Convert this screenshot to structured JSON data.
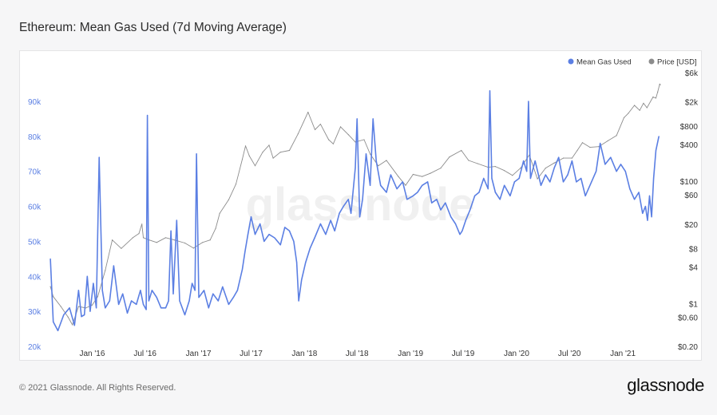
{
  "header": {
    "title": "Ethereum: Mean Gas Used (7d Moving Average)"
  },
  "footer": {
    "copyright": "© 2021 Glassnode. All Rights Reserved.",
    "brand": "glassnode"
  },
  "watermark": "glassnode",
  "colors": {
    "gas": "#5b7fe3",
    "price": "#8c8c8c",
    "left_axis": "#5b7fe3",
    "right_axis": "#333333"
  },
  "chart_data": {
    "type": "line",
    "title": "Ethereum: Mean Gas Used (7d Moving Average)",
    "x_range": [
      "2015-08-07",
      "2021-05-10"
    ],
    "x_ticks": [
      {
        "date": "2016-01-01",
        "label": "Jan '16"
      },
      {
        "date": "2016-07-01",
        "label": "Jul '16"
      },
      {
        "date": "2017-01-01",
        "label": "Jan '17"
      },
      {
        "date": "2017-07-01",
        "label": "Jul '17"
      },
      {
        "date": "2018-01-01",
        "label": "Jan '18"
      },
      {
        "date": "2018-07-01",
        "label": "Jul '18"
      },
      {
        "date": "2019-01-01",
        "label": "Jan '19"
      },
      {
        "date": "2019-07-01",
        "label": "Jul '19"
      },
      {
        "date": "2020-01-01",
        "label": "Jan '20"
      },
      {
        "date": "2020-07-01",
        "label": "Jul '20"
      },
      {
        "date": "2021-01-01",
        "label": "Jan '21"
      }
    ],
    "y_left": {
      "scale": "linear",
      "range": [
        20000,
        95000
      ],
      "ticks": [
        {
          "value": 20000,
          "label": "20k"
        },
        {
          "value": 30000,
          "label": "30k"
        },
        {
          "value": 40000,
          "label": "40k"
        },
        {
          "value": 50000,
          "label": "50k"
        },
        {
          "value": 60000,
          "label": "60k"
        },
        {
          "value": 70000,
          "label": "70k"
        },
        {
          "value": 80000,
          "label": "80k"
        },
        {
          "value": 90000,
          "label": "90k"
        }
      ]
    },
    "y_right": {
      "scale": "log",
      "range": [
        0.2,
        6000
      ],
      "ticks": [
        {
          "value": 0.2,
          "label": "$0.20"
        },
        {
          "value": 0.6,
          "label": "$0.60"
        },
        {
          "value": 1,
          "label": "$1"
        },
        {
          "value": 4,
          "label": "$4"
        },
        {
          "value": 8,
          "label": "$8"
        },
        {
          "value": 20,
          "label": "$20"
        },
        {
          "value": 60,
          "label": "$60"
        },
        {
          "value": 100,
          "label": "$100"
        },
        {
          "value": 400,
          "label": "$400"
        },
        {
          "value": 800,
          "label": "$800"
        },
        {
          "value": 2000,
          "label": "$2k"
        },
        {
          "value": 6000,
          "label": "$6k"
        }
      ]
    },
    "legend": {
      "placement": "top-right"
    },
    "series": [
      {
        "name": "Mean Gas Used",
        "axis": "left",
        "points": [
          [
            "2015-08-10",
            45000
          ],
          [
            "2015-08-20",
            27000
          ],
          [
            "2015-09-05",
            24500
          ],
          [
            "2015-09-25",
            29000
          ],
          [
            "2015-10-15",
            31000
          ],
          [
            "2015-11-01",
            26000
          ],
          [
            "2015-11-15",
            36000
          ],
          [
            "2015-11-25",
            28500
          ],
          [
            "2015-12-05",
            29000
          ],
          [
            "2015-12-15",
            40000
          ],
          [
            "2015-12-25",
            30000
          ],
          [
            "2016-01-05",
            38000
          ],
          [
            "2016-01-15",
            31000
          ],
          [
            "2016-01-25",
            74000
          ],
          [
            "2016-02-05",
            36000
          ],
          [
            "2016-02-15",
            31000
          ],
          [
            "2016-03-01",
            33000
          ],
          [
            "2016-03-15",
            43000
          ],
          [
            "2016-04-01",
            32000
          ],
          [
            "2016-04-15",
            35000
          ],
          [
            "2016-05-01",
            29500
          ],
          [
            "2016-05-15",
            33000
          ],
          [
            "2016-06-01",
            32000
          ],
          [
            "2016-06-15",
            36000
          ],
          [
            "2016-06-25",
            32000
          ],
          [
            "2016-07-05",
            30500
          ],
          [
            "2016-07-09",
            86000
          ],
          [
            "2016-07-14",
            33000
          ],
          [
            "2016-07-25",
            36000
          ],
          [
            "2016-08-10",
            34000
          ],
          [
            "2016-08-25",
            31000
          ],
          [
            "2016-09-10",
            31000
          ],
          [
            "2016-09-20",
            33000
          ],
          [
            "2016-09-28",
            53000
          ],
          [
            "2016-10-06",
            35000
          ],
          [
            "2016-10-18",
            56000
          ],
          [
            "2016-10-28",
            33000
          ],
          [
            "2016-11-15",
            29000
          ],
          [
            "2016-11-30",
            33000
          ],
          [
            "2016-12-10",
            38000
          ],
          [
            "2016-12-20",
            36000
          ],
          [
            "2016-12-25",
            75000
          ],
          [
            "2017-01-02",
            34000
          ],
          [
            "2017-01-20",
            36000
          ],
          [
            "2017-02-05",
            31000
          ],
          [
            "2017-02-20",
            35000
          ],
          [
            "2017-03-10",
            33000
          ],
          [
            "2017-03-25",
            37000
          ],
          [
            "2017-04-15",
            32000
          ],
          [
            "2017-05-01",
            34000
          ],
          [
            "2017-05-15",
            36000
          ],
          [
            "2017-06-01",
            42000
          ],
          [
            "2017-06-10",
            47000
          ],
          [
            "2017-06-20",
            52000
          ],
          [
            "2017-07-01",
            57000
          ],
          [
            "2017-07-15",
            52000
          ],
          [
            "2017-08-01",
            55000
          ],
          [
            "2017-08-15",
            50000
          ],
          [
            "2017-09-01",
            52000
          ],
          [
            "2017-09-20",
            51000
          ],
          [
            "2017-10-10",
            49000
          ],
          [
            "2017-10-25",
            54000
          ],
          [
            "2017-11-10",
            53000
          ],
          [
            "2017-11-25",
            50000
          ],
          [
            "2017-12-05",
            44000
          ],
          [
            "2017-12-12",
            33000
          ],
          [
            "2017-12-22",
            39000
          ],
          [
            "2018-01-05",
            44000
          ],
          [
            "2018-01-20",
            48000
          ],
          [
            "2018-02-05",
            51000
          ],
          [
            "2018-02-25",
            55000
          ],
          [
            "2018-03-15",
            52000
          ],
          [
            "2018-04-01",
            56000
          ],
          [
            "2018-04-15",
            53000
          ],
          [
            "2018-05-01",
            58000
          ],
          [
            "2018-05-15",
            60000
          ],
          [
            "2018-06-01",
            62000
          ],
          [
            "2018-06-10",
            58000
          ],
          [
            "2018-06-25",
            71000
          ],
          [
            "2018-07-01",
            85000
          ],
          [
            "2018-07-10",
            57000
          ],
          [
            "2018-07-20",
            62000
          ],
          [
            "2018-08-01",
            75000
          ],
          [
            "2018-08-15",
            66000
          ],
          [
            "2018-08-25",
            85000
          ],
          [
            "2018-09-05",
            73000
          ],
          [
            "2018-09-20",
            66000
          ],
          [
            "2018-10-10",
            64000
          ],
          [
            "2018-10-25",
            69000
          ],
          [
            "2018-11-15",
            65000
          ],
          [
            "2018-12-05",
            67000
          ],
          [
            "2018-12-20",
            62000
          ],
          [
            "2019-01-10",
            63000
          ],
          [
            "2019-01-25",
            64000
          ],
          [
            "2019-02-10",
            66000
          ],
          [
            "2019-03-01",
            67000
          ],
          [
            "2019-03-15",
            61000
          ],
          [
            "2019-04-01",
            62000
          ],
          [
            "2019-04-15",
            59000
          ],
          [
            "2019-05-01",
            61000
          ],
          [
            "2019-05-20",
            57000
          ],
          [
            "2019-06-05",
            55000
          ],
          [
            "2019-06-20",
            52000
          ],
          [
            "2019-06-28",
            53000
          ],
          [
            "2019-07-10",
            56000
          ],
          [
            "2019-07-25",
            59000
          ],
          [
            "2019-08-10",
            63000
          ],
          [
            "2019-08-25",
            64000
          ],
          [
            "2019-09-10",
            68000
          ],
          [
            "2019-09-25",
            65000
          ],
          [
            "2019-10-01",
            93000
          ],
          [
            "2019-10-08",
            68000
          ],
          [
            "2019-10-20",
            64000
          ],
          [
            "2019-11-05",
            62000
          ],
          [
            "2019-11-20",
            66000
          ],
          [
            "2019-12-10",
            63000
          ],
          [
            "2019-12-25",
            67000
          ],
          [
            "2020-01-10",
            68000
          ],
          [
            "2020-01-25",
            73000
          ],
          [
            "2020-02-05",
            70000
          ],
          [
            "2020-02-11",
            90000
          ],
          [
            "2020-02-18",
            68000
          ],
          [
            "2020-03-05",
            73000
          ],
          [
            "2020-03-25",
            66000
          ],
          [
            "2020-04-10",
            69000
          ],
          [
            "2020-04-25",
            67000
          ],
          [
            "2020-05-10",
            71000
          ],
          [
            "2020-05-25",
            74000
          ],
          [
            "2020-06-10",
            67000
          ],
          [
            "2020-06-25",
            69000
          ],
          [
            "2020-07-10",
            73000
          ],
          [
            "2020-07-25",
            67000
          ],
          [
            "2020-08-10",
            68000
          ],
          [
            "2020-08-25",
            63000
          ],
          [
            "2020-09-15",
            67000
          ],
          [
            "2020-10-01",
            70000
          ],
          [
            "2020-10-15",
            78000
          ],
          [
            "2020-11-01",
            72000
          ],
          [
            "2020-11-20",
            74000
          ],
          [
            "2020-12-10",
            70000
          ],
          [
            "2020-12-25",
            72000
          ],
          [
            "2021-01-10",
            70000
          ],
          [
            "2021-01-25",
            65000
          ],
          [
            "2021-02-10",
            62000
          ],
          [
            "2021-02-25",
            64000
          ],
          [
            "2021-03-10",
            58000
          ],
          [
            "2021-03-20",
            60000
          ],
          [
            "2021-03-27",
            56000
          ],
          [
            "2021-04-03",
            63000
          ],
          [
            "2021-04-10",
            57000
          ],
          [
            "2021-04-17",
            68000
          ],
          [
            "2021-04-25",
            76000
          ],
          [
            "2021-05-05",
            80000
          ]
        ]
      },
      {
        "name": "Price [USD]",
        "axis": "right",
        "points": [
          [
            "2015-08-10",
            1.9
          ],
          [
            "2015-08-20",
            1.3
          ],
          [
            "2015-09-15",
            0.9
          ],
          [
            "2015-10-10",
            0.6
          ],
          [
            "2015-10-25",
            0.45
          ],
          [
            "2015-11-15",
            0.9
          ],
          [
            "2015-12-10",
            0.85
          ],
          [
            "2016-01-01",
            0.95
          ],
          [
            "2016-01-20",
            1.3
          ],
          [
            "2016-02-15",
            3.5
          ],
          [
            "2016-03-10",
            11
          ],
          [
            "2016-04-10",
            8
          ],
          [
            "2016-05-20",
            12
          ],
          [
            "2016-06-10",
            14
          ],
          [
            "2016-06-20",
            20
          ],
          [
            "2016-06-25",
            12
          ],
          [
            "2016-07-15",
            11
          ],
          [
            "2016-08-10",
            10
          ],
          [
            "2016-09-10",
            12
          ],
          [
            "2016-10-10",
            11
          ],
          [
            "2016-11-15",
            9.8
          ],
          [
            "2016-12-15",
            8.1
          ],
          [
            "2017-01-15",
            10
          ],
          [
            "2017-02-10",
            11
          ],
          [
            "2017-03-01",
            17
          ],
          [
            "2017-03-15",
            30
          ],
          [
            "2017-04-15",
            50
          ],
          [
            "2017-05-10",
            90
          ],
          [
            "2017-06-01",
            230
          ],
          [
            "2017-06-12",
            380
          ],
          [
            "2017-06-25",
            260
          ],
          [
            "2017-07-15",
            180
          ],
          [
            "2017-08-10",
            300
          ],
          [
            "2017-09-01",
            390
          ],
          [
            "2017-09-15",
            240
          ],
          [
            "2017-10-10",
            300
          ],
          [
            "2017-11-10",
            320
          ],
          [
            "2017-12-10",
            600
          ],
          [
            "2018-01-13",
            1350
          ],
          [
            "2018-02-06",
            700
          ],
          [
            "2018-02-25",
            860
          ],
          [
            "2018-03-25",
            480
          ],
          [
            "2018-04-10",
            410
          ],
          [
            "2018-05-05",
            780
          ],
          [
            "2018-06-01",
            580
          ],
          [
            "2018-06-25",
            440
          ],
          [
            "2018-07-25",
            480
          ],
          [
            "2018-08-15",
            280
          ],
          [
            "2018-09-12",
            180
          ],
          [
            "2018-10-10",
            220
          ],
          [
            "2018-11-20",
            120
          ],
          [
            "2018-12-15",
            86
          ],
          [
            "2019-01-10",
            130
          ],
          [
            "2019-02-10",
            120
          ],
          [
            "2019-03-10",
            135
          ],
          [
            "2019-04-15",
            165
          ],
          [
            "2019-05-15",
            250
          ],
          [
            "2019-06-25",
            320
          ],
          [
            "2019-07-20",
            220
          ],
          [
            "2019-08-20",
            195
          ],
          [
            "2019-09-25",
            170
          ],
          [
            "2019-10-20",
            175
          ],
          [
            "2019-11-20",
            150
          ],
          [
            "2019-12-18",
            125
          ],
          [
            "2020-01-15",
            165
          ],
          [
            "2020-02-14",
            270
          ],
          [
            "2020-03-13",
            110
          ],
          [
            "2020-04-10",
            165
          ],
          [
            "2020-05-10",
            200
          ],
          [
            "2020-06-10",
            240
          ],
          [
            "2020-07-10",
            240
          ],
          [
            "2020-07-28",
            320
          ],
          [
            "2020-08-15",
            430
          ],
          [
            "2020-09-10",
            360
          ],
          [
            "2020-10-10",
            370
          ],
          [
            "2020-11-10",
            460
          ],
          [
            "2020-12-10",
            560
          ],
          [
            "2021-01-05",
            1100
          ],
          [
            "2021-01-20",
            1300
          ],
          [
            "2021-02-10",
            1750
          ],
          [
            "2021-02-28",
            1450
          ],
          [
            "2021-03-13",
            1900
          ],
          [
            "2021-03-25",
            1600
          ],
          [
            "2021-04-15",
            2400
          ],
          [
            "2021-04-25",
            2300
          ],
          [
            "2021-05-01",
            2900
          ],
          [
            "2021-05-08",
            3900
          ],
          [
            "2021-05-10",
            3800
          ]
        ]
      }
    ]
  }
}
